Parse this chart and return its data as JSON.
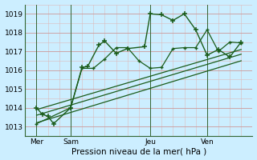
{
  "xlabel": "Pression niveau de la mer( hPa )",
  "bg_color": "#cceeff",
  "grid_major_color": "#cc9999",
  "grid_minor_color": "#ddbbbb",
  "line_color": "#1a5c1a",
  "ylim": [
    1012.5,
    1019.5
  ],
  "yticks": [
    1013,
    1014,
    1015,
    1016,
    1017,
    1018,
    1019
  ],
  "xlim": [
    0,
    20
  ],
  "xtick_labels": [
    "Mer",
    "Sam",
    "Jeu",
    "Ven"
  ],
  "xtick_positions": [
    1,
    4,
    11,
    16
  ],
  "vline_positions": [
    1,
    4,
    11,
    16
  ],
  "line1_x": [
    1,
    1.5,
    2,
    2.5,
    4,
    5,
    5.5,
    6.5,
    7,
    8,
    9,
    10.5,
    11,
    12,
    13,
    14,
    15,
    16,
    17,
    18,
    19
  ],
  "line1_y": [
    1014.0,
    1013.65,
    1013.55,
    1013.15,
    1014.0,
    1016.15,
    1016.2,
    1017.35,
    1017.55,
    1016.9,
    1017.15,
    1017.25,
    1019.0,
    1018.95,
    1018.65,
    1019.0,
    1018.15,
    1016.8,
    1017.1,
    1016.7,
    1017.5
  ],
  "line2_x": [
    1,
    4,
    5,
    6,
    7,
    8,
    9,
    10,
    11,
    12,
    13,
    14,
    15,
    16,
    17,
    18,
    19
  ],
  "line2_y": [
    1013.15,
    1014.0,
    1016.1,
    1016.1,
    1016.6,
    1017.2,
    1017.2,
    1016.5,
    1016.1,
    1016.15,
    1017.15,
    1017.2,
    1017.2,
    1018.15,
    1017.0,
    1017.5,
    1017.45
  ],
  "line3_x": [
    1,
    19
  ],
  "line3_y": [
    1013.2,
    1016.5
  ],
  "line4_x": [
    1,
    19
  ],
  "line4_y": [
    1013.6,
    1016.85
  ],
  "line5_x": [
    1,
    19
  ],
  "line5_y": [
    1013.9,
    1017.1
  ],
  "figsize": [
    3.2,
    2.0
  ],
  "dpi": 100
}
